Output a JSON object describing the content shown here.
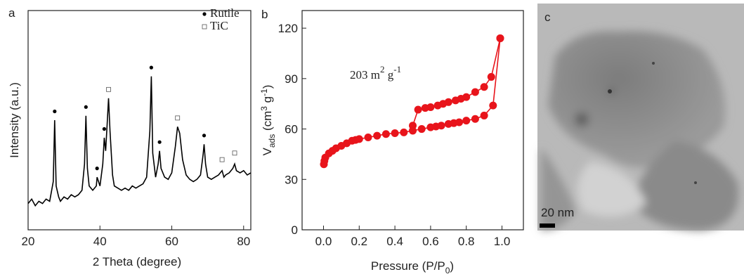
{
  "chart_data": [
    {
      "type": "line",
      "panel_label": "a",
      "x_label": "2 Theta (degree)",
      "y_label": "Intensity (a.u.)",
      "xlim": [
        20,
        82
      ],
      "xticks": [
        20,
        40,
        60,
        80
      ],
      "ylim": [
        0,
        100
      ],
      "color": "#000000",
      "x": [
        20,
        21,
        22,
        23,
        24,
        25,
        26,
        27,
        27.4,
        27.8,
        28.5,
        29,
        30,
        31,
        32,
        33,
        34,
        35,
        35.7,
        36.1,
        36.5,
        37,
        38,
        39,
        39.2,
        40,
        40.8,
        41.2,
        41.6,
        42,
        42.4,
        42.8,
        43.5,
        44,
        45,
        46,
        47,
        48,
        49,
        50,
        51,
        52,
        53,
        53.9,
        54.3,
        54.7,
        55.5,
        56.2,
        56.6,
        57,
        58,
        59,
        60,
        61,
        61.6,
        62.2,
        63,
        64,
        65,
        66,
        67,
        68,
        68.7,
        69,
        69.4,
        70,
        71,
        72,
        73,
        74,
        74.5,
        75,
        76,
        77,
        77.5,
        78,
        79,
        80,
        81,
        82
      ],
      "values": [
        12,
        14,
        11,
        13,
        12,
        14,
        13,
        22,
        50,
        20,
        15,
        13,
        15,
        14,
        16,
        15,
        16,
        18,
        30,
        52,
        28,
        20,
        18,
        20,
        24,
        20,
        30,
        42,
        36,
        48,
        60,
        45,
        25,
        20,
        19,
        18,
        19,
        18,
        20,
        19,
        20,
        21,
        24,
        45,
        70,
        35,
        24,
        30,
        36,
        28,
        24,
        23,
        26,
        38,
        47,
        44,
        32,
        25,
        23,
        22,
        23,
        25,
        34,
        39,
        30,
        24,
        23,
        24,
        25,
        27,
        24,
        25,
        26,
        28,
        30,
        27,
        26,
        27,
        25,
        26
      ],
      "peak_marks": [
        {
          "name": "Rutile",
          "marker": "circle",
          "x": [
            27.4,
            36.1,
            39.2,
            41.2,
            54.3,
            56.6,
            69
          ],
          "values": [
            54,
            56,
            28,
            46,
            74,
            40,
            43
          ]
        },
        {
          "name": "TiC",
          "marker": "square",
          "x": [
            42.4,
            61.6,
            74,
            77.5
          ],
          "values": [
            64,
            51,
            32,
            35
          ]
        }
      ]
    },
    {
      "type": "scatter-line",
      "panel_label": "b",
      "x_label_parts": [
        "Pressure (P/P",
        "0",
        ")"
      ],
      "y_label_parts": [
        "V",
        "ads",
        " (cm",
        "3",
        " g",
        "-1",
        ")"
      ],
      "annotation_parts": [
        "203 m",
        "2",
        " g",
        "-1"
      ],
      "xlim": [
        -0.12,
        1.12
      ],
      "ylim": [
        0,
        130.5
      ],
      "xticks": [
        {
          "value": 0,
          "label": "0.0"
        },
        {
          "value": 0.2,
          "label": "0.2"
        },
        {
          "value": 0.4,
          "label": "0.4"
        },
        {
          "value": 0.6,
          "label": "0.6"
        },
        {
          "value": 0.8,
          "label": "0.8"
        },
        {
          "value": 1,
          "label": "1.0"
        }
      ],
      "yticks": [
        0,
        30,
        60,
        90,
        120
      ],
      "series": [
        {
          "color": "#e8141b",
          "x": [
            0.002,
            0.005,
            0.01,
            0.03,
            0.05,
            0.07,
            0.1,
            0.13,
            0.16,
            0.18,
            0.2,
            0.25,
            0.3,
            0.35,
            0.4,
            0.45,
            0.5,
            0.55,
            0.6,
            0.63,
            0.66,
            0.7,
            0.73,
            0.76,
            0.8,
            0.85,
            0.9,
            0.95,
            0.99
          ],
          "values": [
            39,
            41,
            43,
            45.5,
            47,
            48.5,
            50,
            51.5,
            53,
            53.5,
            54,
            55,
            56,
            57,
            57.5,
            58,
            59,
            60,
            61,
            61.5,
            62,
            63,
            63.5,
            64,
            65,
            66,
            68,
            74,
            114
          ]
        },
        {
          "color": "#e8141b",
          "x": [
            0.99,
            0.94,
            0.9,
            0.85,
            0.8,
            0.77,
            0.74,
            0.7,
            0.67,
            0.64,
            0.6,
            0.57,
            0.53,
            0.5
          ],
          "values": [
            114,
            91,
            85,
            82,
            79,
            78,
            77,
            76,
            75,
            74,
            73,
            72.5,
            71.5,
            62
          ]
        }
      ]
    },
    {
      "type": "image",
      "panel_label": "c",
      "scale_bar": "20 nm"
    }
  ]
}
